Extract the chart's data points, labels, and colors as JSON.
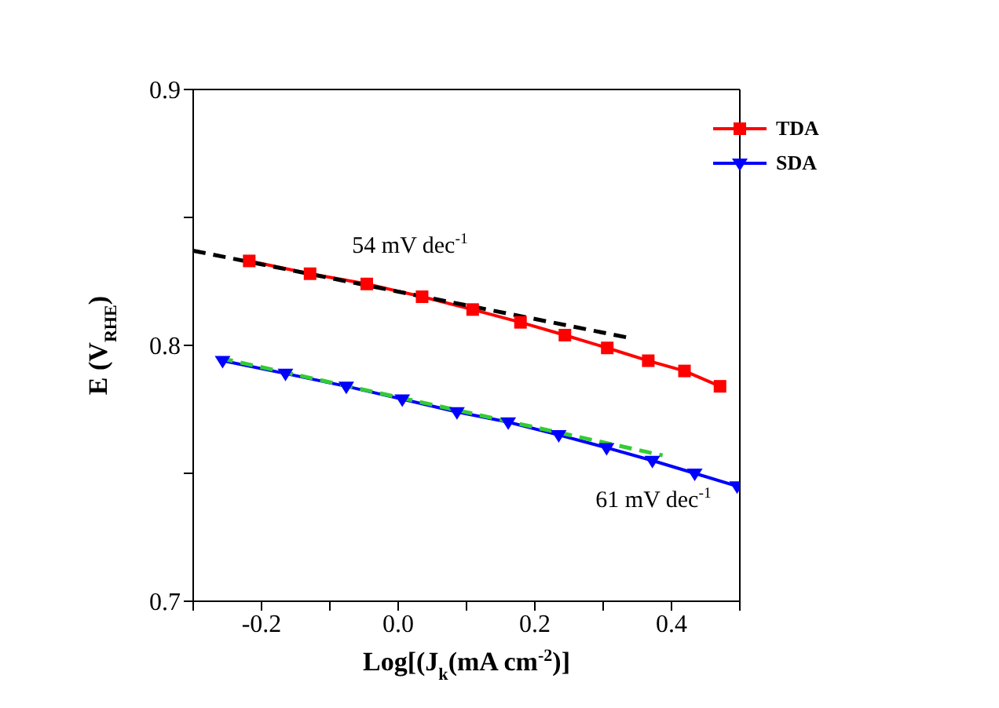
{
  "chart_data": {
    "type": "line",
    "xlabel": "Log[(J$_{k}$(mA cm$^{-2}$)]",
    "ylabel": "E (V$_{RHE}$)",
    "xlim": [
      -0.3,
      0.5
    ],
    "xticks": [
      {
        "value": -0.3,
        "label": null
      },
      -0.2,
      {
        "value": -0.1,
        "label": null
      },
      {
        "value": 0,
        "label": "0.0"
      },
      {
        "value": 0.1,
        "label": null
      },
      0.2,
      {
        "value": 0.3,
        "label": null
      },
      0.4,
      {
        "value": 0.5,
        "label": null
      }
    ],
    "ylim": [
      0.7,
      0.9
    ],
    "yticks": [
      0.7,
      {
        "value": 0.75,
        "label": null
      },
      0.8,
      {
        "value": 0.85,
        "label": null
      },
      0.9
    ],
    "legend": "top right",
    "series": [
      {
        "name": "TDA",
        "color": "#ff0000",
        "marker": "square",
        "x": [
          -0.218,
          -0.129,
          -0.046,
          0.035,
          0.109,
          0.179,
          0.244,
          0.306,
          0.366,
          0.419,
          0.471
        ],
        "values": [
          0.833,
          0.828,
          0.824,
          0.819,
          0.814,
          0.809,
          0.804,
          0.799,
          0.794,
          0.79,
          0.784
        ]
      },
      {
        "name": "SDA",
        "color": "#0000ff",
        "marker": "triangle",
        "x": [
          -0.257,
          -0.165,
          -0.076,
          0.006,
          0.086,
          0.161,
          0.235,
          0.305,
          0.372,
          0.434,
          0.496
        ],
        "values": [
          0.794,
          0.789,
          0.784,
          0.779,
          0.774,
          0.77,
          0.765,
          0.76,
          0.755,
          0.75,
          0.745
        ]
      },
      {
        "type": "line",
        "color": "#000000",
        "marker": "none",
        "line_style": "dashed",
        "x": [
          -0.3,
          0.337
        ],
        "values": [
          0.837,
          0.803
        ]
      },
      {
        "type": "line",
        "color": "#33cc33",
        "marker": "none",
        "line_style": "dashed",
        "x": [
          -0.26,
          0.387
        ],
        "values": [
          0.795,
          0.757
        ]
      }
    ],
    "annotations": [
      "54 mV dec$^{-1}$",
      "61 mV dec$^{-1}$"
    ]
  }
}
